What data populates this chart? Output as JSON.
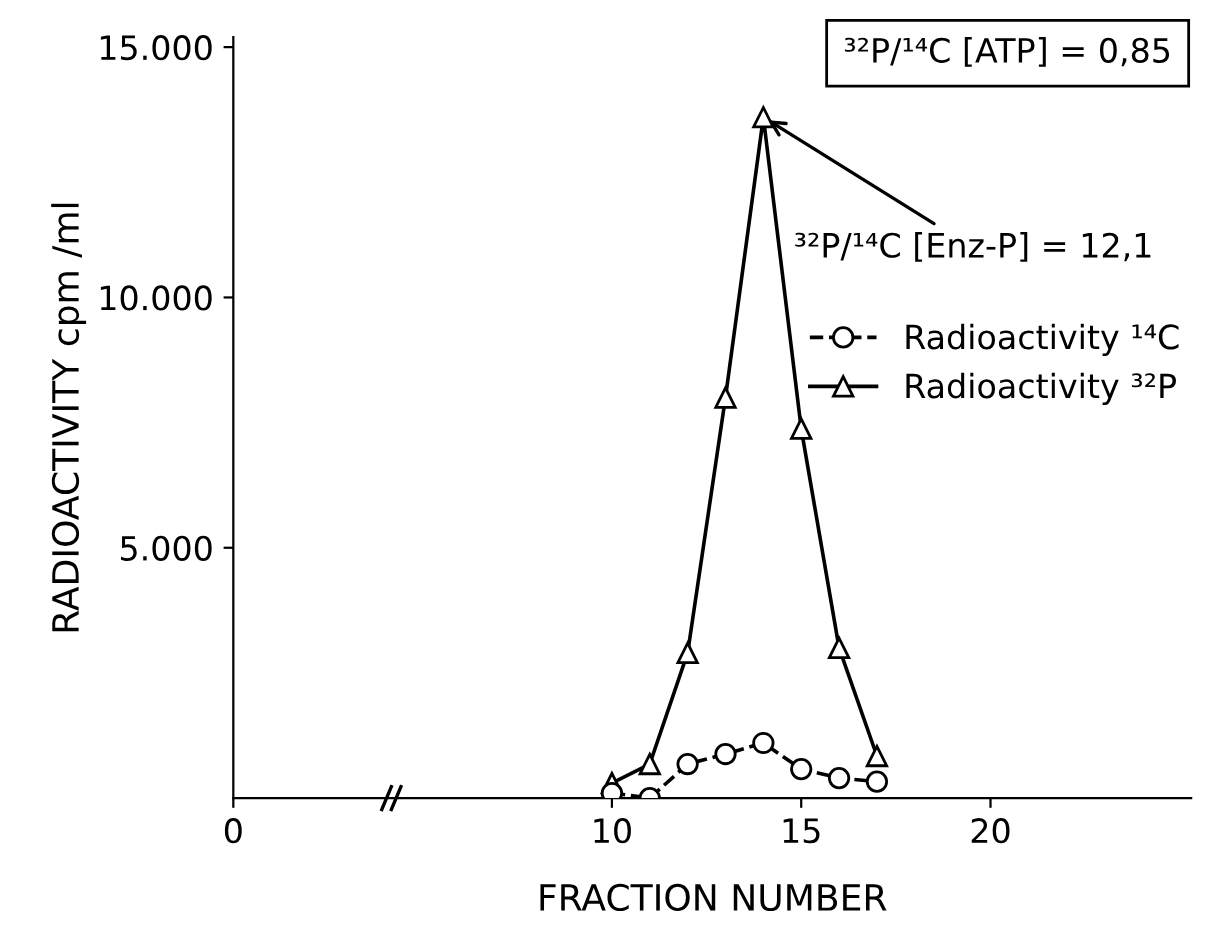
{
  "chart_data": {
    "type": "line",
    "xlabel": "FRACTION NUMBER",
    "ylabel": "RADIOACTIVITY cpm /ml",
    "x": [
      10,
      11,
      12,
      13,
      14,
      15,
      16,
      17
    ],
    "series": [
      {
        "name": "Radioactivity ¹⁴C",
        "color": "#000000",
        "marker": "circle",
        "line_style": "dashed",
        "values": [
          100,
          0,
          680,
          880,
          1100,
          580,
          400,
          330
        ]
      },
      {
        "name": "Radioactivity ³²P",
        "color": "#000000",
        "marker": "triangle",
        "line_style": "solid",
        "values": [
          300,
          680,
          2900,
          8000,
          13600,
          7380,
          3000,
          840
        ]
      }
    ],
    "xlim": [
      0,
      25.3
    ],
    "xticks": [
      0,
      10,
      15,
      20
    ],
    "ylim": [
      0,
      15200
    ],
    "yticks": [
      {
        "value": 5000,
        "label": "5.000"
      },
      {
        "value": 10000,
        "label": "10.000"
      },
      {
        "value": 15000,
        "label": "15.000"
      }
    ],
    "annotations": [
      "³²P/¹⁴C [ATP] = 0,85",
      {
        "text": "³²P/¹⁴C [Enz-P] = 12,1",
        "x": 14,
        "y": 13600
      }
    ],
    "legend": "right",
    "grid": false
  }
}
